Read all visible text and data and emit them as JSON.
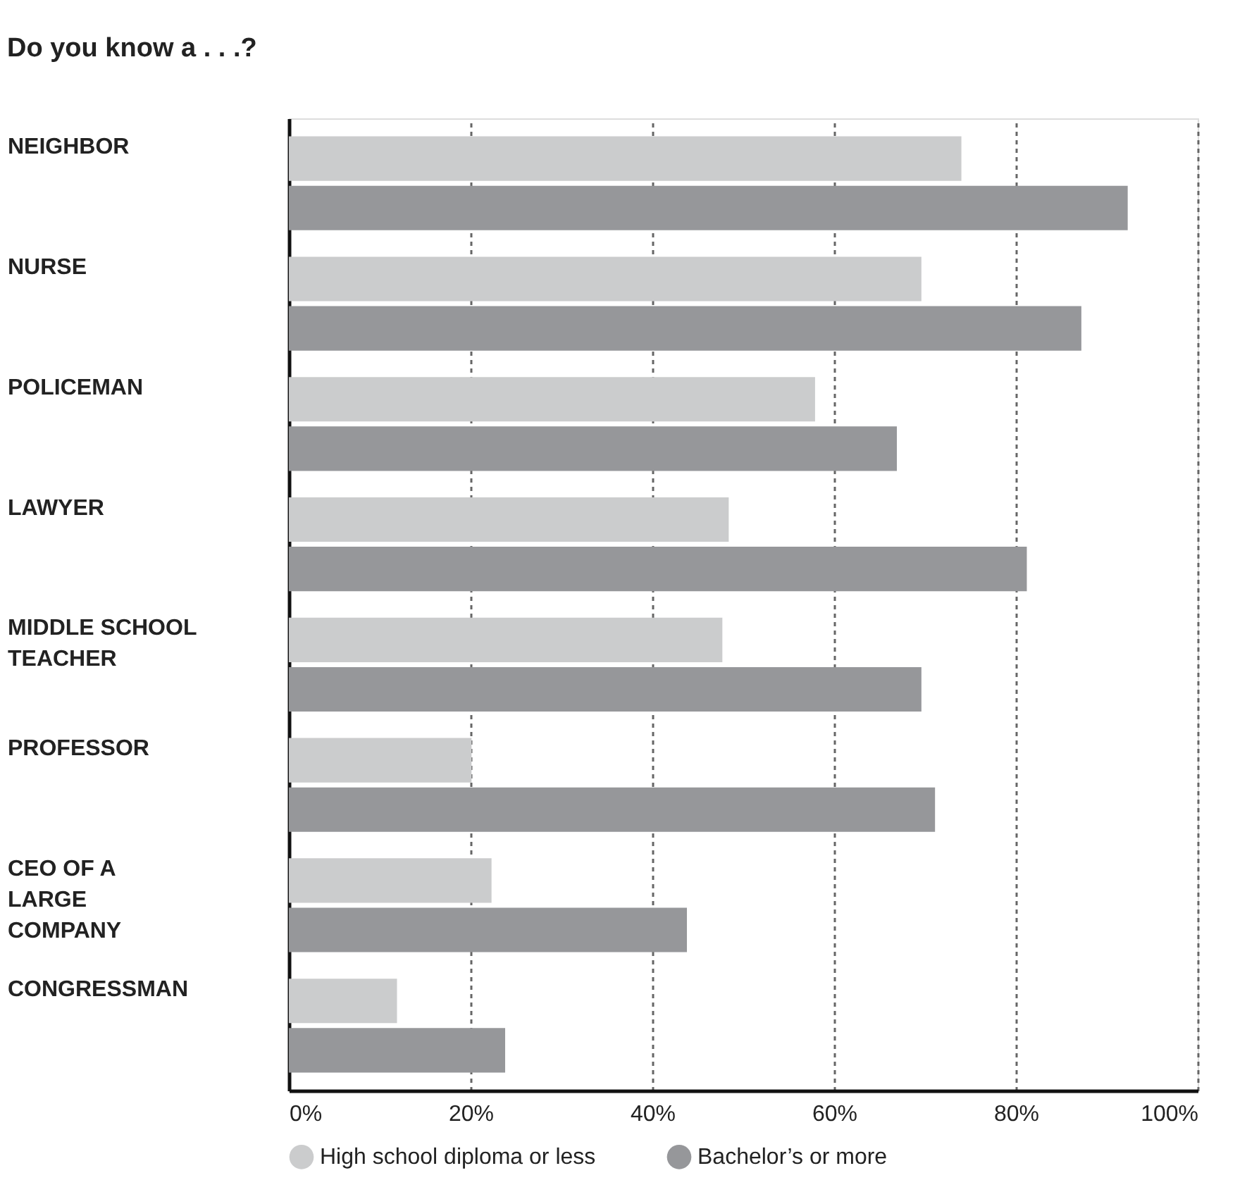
{
  "chart_data": {
    "type": "bar",
    "orientation": "horizontal",
    "title": "Do you know a . . .?",
    "categories": [
      "NEIGHBOR",
      "NURSE",
      "POLICEMAN",
      "LAWYER",
      "MIDDLE SCHOOL\nTEACHER",
      "PROFESSOR",
      "CEO OF A\nLARGE\nCOMPANY",
      "CONGRESSMAN"
    ],
    "series": [
      {
        "name": "High school diploma or less",
        "color": "#cbcccd",
        "values": [
          74,
          69.6,
          57.9,
          48.4,
          47.7,
          20.1,
          22.3,
          11.9
        ]
      },
      {
        "name": "Bachelor’s or more",
        "color": "#96979a",
        "values": [
          92.3,
          87.2,
          66.9,
          81.2,
          69.6,
          71.1,
          43.8,
          23.8
        ]
      }
    ],
    "xlim": [
      0,
      100
    ],
    "xticks": [
      {
        "value": 0,
        "label": "0%"
      },
      {
        "value": 20,
        "label": "20%"
      },
      {
        "value": 40,
        "label": "40%"
      },
      {
        "value": 60,
        "label": "60%"
      },
      {
        "value": 80,
        "label": "80%"
      },
      {
        "value": 100,
        "label": "100%"
      }
    ],
    "grid": "x",
    "line_style": "dashed",
    "legend": "bottom"
  }
}
